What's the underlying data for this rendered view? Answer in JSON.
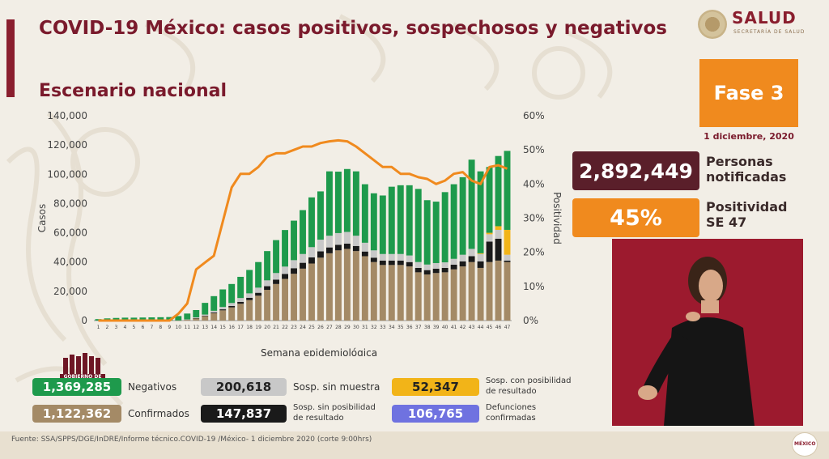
{
  "header": {
    "title": "COVID-19 México: casos positivos, sospechosos y negativos",
    "subtitle": "Escenario nacional",
    "logo_text": "SALUD",
    "logo_sub": "SECRETARÍA DE SALUD"
  },
  "phase": {
    "label": "Fase 3",
    "date": "1 diciembre, 2020"
  },
  "kpis": {
    "personas_value": "2,892,449",
    "personas_label_1": "Personas",
    "personas_label_2": "notificadas",
    "positividad_value": "45%",
    "positividad_label_1": "Positividad",
    "positividad_label_2": "SE 47"
  },
  "legend": {
    "negativos_value": "1,369,285",
    "negativos_label": "Negativos",
    "confirmados_value": "1,122,362",
    "confirmados_label": "Confirmados",
    "sosp_sin_muestra_value": "200,618",
    "sosp_sin_muestra_label": "Sosp. sin muestra",
    "sosp_sin_posib_value": "147,837",
    "sosp_sin_posib_label_1": "Sosp. sin posibilidad",
    "sosp_sin_posib_label_2": "de resultado",
    "sosp_con_posib_value": "52,347",
    "sosp_con_posib_label_1": "Sosp. con posibilidad",
    "sosp_con_posib_label_2": "de resultado",
    "defunciones_value": "106,765",
    "defunciones_label_1": "Defunciones",
    "defunciones_label_2": "confirmadas"
  },
  "gov_logo_text": "GOBIERNO DE MÉXICO",
  "mx_logo_text": "MÉXICO",
  "footer": "Fuente: SSA/SPPS/DGE/InDRE/Informe técnico.COVID-19 /México- 1 diciembre 2020 (corte 9:00hrs)",
  "colors": {
    "confirmados": "#a48a66",
    "sosp_sin_posib": "#1a1a1a",
    "sosp_sin_muestra": "#c8c8c8",
    "negativos": "#1e9a4c",
    "sosp_con_posib": "#f2b418",
    "positividad": "#f08a1e",
    "defunciones": "#6f72e0"
  },
  "chart_data": {
    "type": "bar",
    "stacked": true,
    "xlabel": "Semana epidemiológica",
    "ylabel": "Casos",
    "y2label": "Positividad",
    "ylim": [
      0,
      140000
    ],
    "y2lim": [
      0,
      60
    ],
    "yticks": [
      "0",
      "20,000",
      "40,000",
      "60,000",
      "80,000",
      "100,000",
      "120,000",
      "140,000"
    ],
    "y2ticks": [
      "0%",
      "10%",
      "20%",
      "30%",
      "40%",
      "50%",
      "60%"
    ],
    "categories": [
      "1",
      "2",
      "3",
      "4",
      "5",
      "6",
      "7",
      "8",
      "9",
      "10",
      "11",
      "12",
      "13",
      "14",
      "15",
      "16",
      "17",
      "18",
      "19",
      "20",
      "21",
      "22",
      "23",
      "24",
      "25",
      "26",
      "27",
      "28",
      "29",
      "30",
      "31",
      "32",
      "33",
      "34",
      "35",
      "36",
      "37",
      "38",
      "39",
      "40",
      "41",
      "42",
      "43",
      "44",
      "45",
      "46",
      "47"
    ],
    "series": [
      {
        "name": "Confirmados",
        "values": [
          0,
          0,
          0,
          0,
          0,
          0,
          0,
          0,
          0,
          100,
          600,
          1500,
          3000,
          5000,
          7000,
          9000,
          11500,
          14000,
          17000,
          21000,
          25000,
          28500,
          32000,
          35500,
          39000,
          43000,
          46000,
          48000,
          49000,
          47500,
          44000,
          40000,
          38000,
          38000,
          38000,
          37000,
          33000,
          31500,
          32500,
          33000,
          35000,
          37000,
          40000,
          36000,
          40000,
          41000,
          40000
        ]
      },
      {
        "name": "Sosp. sin posibilidad de resultado",
        "values": [
          0,
          0,
          0,
          0,
          0,
          0,
          0,
          0,
          0,
          0,
          0,
          200,
          300,
          500,
          700,
          1000,
          1300,
          1600,
          2000,
          2500,
          3000,
          3400,
          3800,
          4000,
          4200,
          4300,
          4000,
          3800,
          3600,
          3500,
          3200,
          3000,
          3000,
          3000,
          3000,
          3000,
          3000,
          3000,
          3000,
          3000,
          3200,
          3500,
          4000,
          4500,
          14000,
          15000,
          1000
        ]
      },
      {
        "name": "Sosp. sin muestra",
        "values": [
          0,
          0,
          0,
          0,
          0,
          0,
          0,
          0,
          0,
          0,
          200,
          500,
          800,
          1200,
          1600,
          2000,
          2600,
          3000,
          3500,
          4000,
          4500,
          5000,
          5500,
          6000,
          7000,
          8000,
          8000,
          8000,
          8000,
          7000,
          6000,
          5000,
          4500,
          4500,
          4500,
          4500,
          4000,
          3800,
          3800,
          3800,
          4000,
          4500,
          5000,
          5000,
          5000,
          6000,
          4000
        ]
      },
      {
        "name": "Sosp. con posibilidad de resultado",
        "values": [
          0,
          0,
          0,
          0,
          0,
          0,
          0,
          0,
          0,
          0,
          0,
          0,
          0,
          0,
          0,
          0,
          0,
          0,
          0,
          0,
          0,
          0,
          0,
          0,
          0,
          0,
          0,
          0,
          0,
          0,
          0,
          0,
          0,
          0,
          0,
          0,
          0,
          0,
          0,
          0,
          0,
          0,
          0,
          500,
          1000,
          2500,
          17000
        ]
      },
      {
        "name": "Negativos",
        "values": [
          1000,
          1500,
          1800,
          2000,
          2000,
          2100,
          2200,
          2300,
          2400,
          3000,
          4000,
          5000,
          8000,
          10000,
          12000,
          13000,
          14500,
          16000,
          17500,
          20000,
          22500,
          25000,
          27000,
          30000,
          34000,
          33000,
          44000,
          42000,
          43000,
          44000,
          40000,
          39000,
          40000,
          46000,
          47000,
          48000,
          50000,
          44000,
          42000,
          48000,
          51000,
          53000,
          61000,
          56000,
          45000,
          48000,
          54000
        ]
      },
      {
        "name": "Positividad",
        "axis": "right",
        "values": [
          0,
          0,
          0,
          0,
          0,
          0,
          0,
          0,
          0,
          2,
          5,
          15,
          17,
          19,
          29,
          39,
          43,
          43,
          45,
          48,
          49,
          49,
          50,
          51,
          51,
          52,
          52.5,
          52.8,
          52.5,
          51,
          49,
          47,
          45,
          45,
          43,
          43,
          42,
          41.5,
          40,
          41,
          43,
          43.5,
          41,
          40,
          45,
          45.5,
          44.5
        ]
      }
    ]
  }
}
